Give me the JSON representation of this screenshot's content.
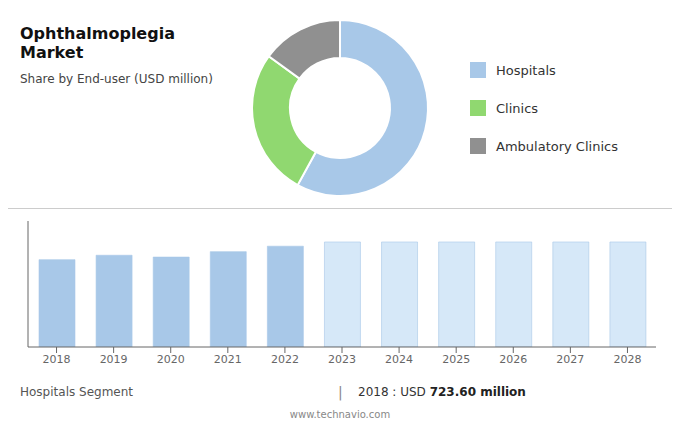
{
  "chart_data": [
    {
      "type": "pie",
      "title": "Ophthalmoplegia Market",
      "subtitle": "Share by End-user (USD million)",
      "categories": [
        "Hospitals",
        "Clinics",
        "Ambulatory Clinics"
      ],
      "values": [
        58,
        27,
        15
      ],
      "colors": [
        "#a8c8e8",
        "#90d870",
        "#909090"
      ],
      "legend": "right"
    },
    {
      "type": "bar",
      "categories": [
        "2018",
        "2019",
        "2020",
        "2021",
        "2022",
        "2023",
        "2024",
        "2025",
        "2026",
        "2027",
        "2028"
      ],
      "values": [
        723.6,
        760,
        745,
        790,
        835,
        870,
        870,
        870,
        870,
        870,
        870
      ],
      "colors": [
        "#a8c8e8",
        "#a8c8e8",
        "#a8c8e8",
        "#a8c8e8",
        "#a8c8e8",
        "#d6e8f8",
        "#d6e8f8",
        "#d6e8f8",
        "#d6e8f8",
        "#d6e8f8",
        "#d6e8f8"
      ],
      "ylim": [
        0,
        1043.75
      ],
      "yticks": [],
      "grid": false,
      "tick_labels": "x",
      "annotations": [
        "Hospitals Segment",
        "|",
        "2018 : USD ",
        "723.60 million",
        "www.technavio.com"
      ]
    }
  ]
}
